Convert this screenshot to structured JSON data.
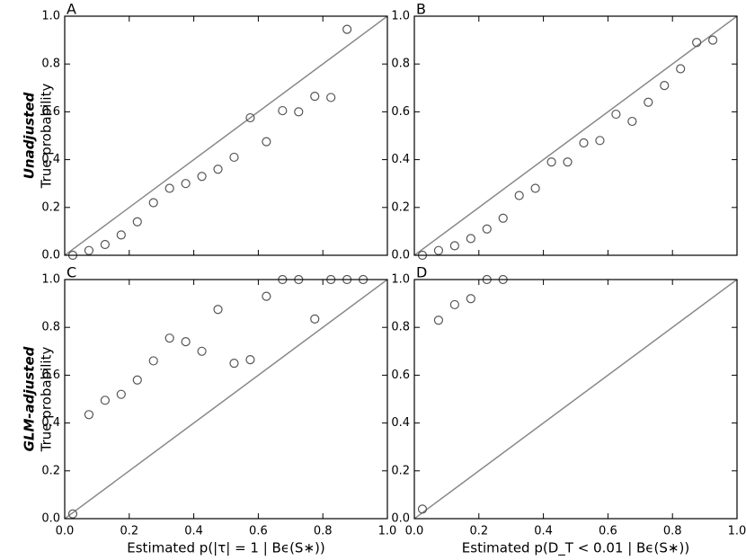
{
  "chart_data": [
    {
      "type": "scatter",
      "panel_label": "A",
      "ylabel_group": "Unadjusted",
      "ylabel": "True probability",
      "x": [
        0.025,
        0.075,
        0.125,
        0.175,
        0.225,
        0.275,
        0.325,
        0.375,
        0.425,
        0.475,
        0.525,
        0.575,
        0.625,
        0.675,
        0.725,
        0.775,
        0.825,
        0.875
      ],
      "values": [
        0.0,
        0.02,
        0.045,
        0.085,
        0.14,
        0.22,
        0.28,
        0.3,
        0.33,
        0.36,
        0.41,
        0.575,
        0.475,
        0.605,
        0.6,
        0.665,
        0.66,
        0.945
      ],
      "xlim": [
        0,
        1
      ],
      "ylim": [
        0,
        1
      ],
      "xticks": [
        0,
        0.2,
        0.4,
        0.6,
        0.8,
        1
      ],
      "yticks": [
        {
          "value": 0,
          "label": "0.0"
        },
        {
          "value": 0.2,
          "label": "0.2"
        },
        {
          "value": 0.4,
          "label": "0.4"
        },
        {
          "value": 0.6,
          "label": "0.6"
        },
        {
          "value": 0.8,
          "label": "0.8"
        },
        {
          "value": 1,
          "label": "1.0"
        }
      ],
      "color": "#555555",
      "diagonal": true,
      "diagonal_color": "#888888"
    },
    {
      "type": "scatter",
      "panel_label": "B",
      "x": [
        0.025,
        0.075,
        0.125,
        0.175,
        0.225,
        0.275,
        0.325,
        0.375,
        0.425,
        0.475,
        0.525,
        0.575,
        0.625,
        0.675,
        0.725,
        0.775,
        0.825,
        0.875,
        0.925
      ],
      "values": [
        0.0,
        0.02,
        0.04,
        0.07,
        0.11,
        0.155,
        0.25,
        0.28,
        0.39,
        0.39,
        0.47,
        0.48,
        0.59,
        0.56,
        0.64,
        0.71,
        0.78,
        0.89,
        0.9
      ],
      "xlim": [
        0,
        1
      ],
      "ylim": [
        0,
        1
      ],
      "xticks": [
        0,
        0.2,
        0.4,
        0.6,
        0.8,
        1
      ],
      "yticks": [
        {
          "value": 0,
          "label": "0.0"
        },
        {
          "value": 0.2,
          "label": "0.2"
        },
        {
          "value": 0.4,
          "label": "0.4"
        },
        {
          "value": 0.6,
          "label": "0.6"
        },
        {
          "value": 0.8,
          "label": "0.8"
        },
        {
          "value": 1,
          "label": "1.0"
        }
      ],
      "color": "#555555",
      "diagonal": true,
      "diagonal_color": "#888888"
    },
    {
      "type": "scatter",
      "panel_label": "C",
      "ylabel_group": "GLM-adjusted",
      "ylabel": "True probability",
      "xlabel": "Estimated p(|τ| = 1 | Bϵ(S∗))",
      "x": [
        0.025,
        0.075,
        0.125,
        0.175,
        0.225,
        0.275,
        0.325,
        0.375,
        0.425,
        0.475,
        0.525,
        0.575,
        0.625,
        0.675,
        0.725,
        0.775,
        0.825,
        0.875,
        0.925
      ],
      "values": [
        0.02,
        0.435,
        0.495,
        0.52,
        0.58,
        0.66,
        0.755,
        0.74,
        0.7,
        0.875,
        0.65,
        0.665,
        0.93,
        1.0,
        1.0,
        0.835,
        1.0,
        1.0,
        1.0
      ],
      "xlim": [
        0,
        1
      ],
      "ylim": [
        0,
        1
      ],
      "xticks": [
        {
          "value": 0,
          "label": "0.0"
        },
        {
          "value": 0.2,
          "label": "0.2"
        },
        {
          "value": 0.4,
          "label": "0.4"
        },
        {
          "value": 0.6,
          "label": "0.6"
        },
        {
          "value": 0.8,
          "label": "0.8"
        },
        {
          "value": 1,
          "label": "1.0"
        }
      ],
      "yticks": [
        {
          "value": 0,
          "label": "0.0"
        },
        {
          "value": 0.2,
          "label": "0.2"
        },
        {
          "value": 0.4,
          "label": "0.4"
        },
        {
          "value": 0.6,
          "label": "0.6"
        },
        {
          "value": 0.8,
          "label": "0.8"
        },
        {
          "value": 1,
          "label": "1.0"
        }
      ],
      "color": "#555555",
      "diagonal": true,
      "diagonal_color": "#888888"
    },
    {
      "type": "scatter",
      "panel_label": "D",
      "xlabel": "Estimated p(D_T < 0.01 | Bϵ(S∗))",
      "x": [
        0.025,
        0.075,
        0.125,
        0.175,
        0.225,
        0.275
      ],
      "values": [
        0.04,
        0.83,
        0.895,
        0.92,
        1.0,
        1.0
      ],
      "xlim": [
        0,
        1
      ],
      "ylim": [
        0,
        1
      ],
      "xticks": [
        {
          "value": 0,
          "label": "0.0"
        },
        {
          "value": 0.2,
          "label": "0.2"
        },
        {
          "value": 0.4,
          "label": "0.4"
        },
        {
          "value": 0.6,
          "label": "0.6"
        },
        {
          "value": 0.8,
          "label": "0.8"
        },
        {
          "value": 1,
          "label": "1.0"
        }
      ],
      "yticks": [
        {
          "value": 0,
          "label": "0.0"
        },
        {
          "value": 0.2,
          "label": "0.2"
        },
        {
          "value": 0.4,
          "label": "0.4"
        },
        {
          "value": 0.6,
          "label": "0.6"
        },
        {
          "value": 0.8,
          "label": "0.8"
        },
        {
          "value": 1,
          "label": "1.0"
        }
      ],
      "color": "#555555",
      "diagonal": true,
      "diagonal_color": "#888888"
    }
  ]
}
